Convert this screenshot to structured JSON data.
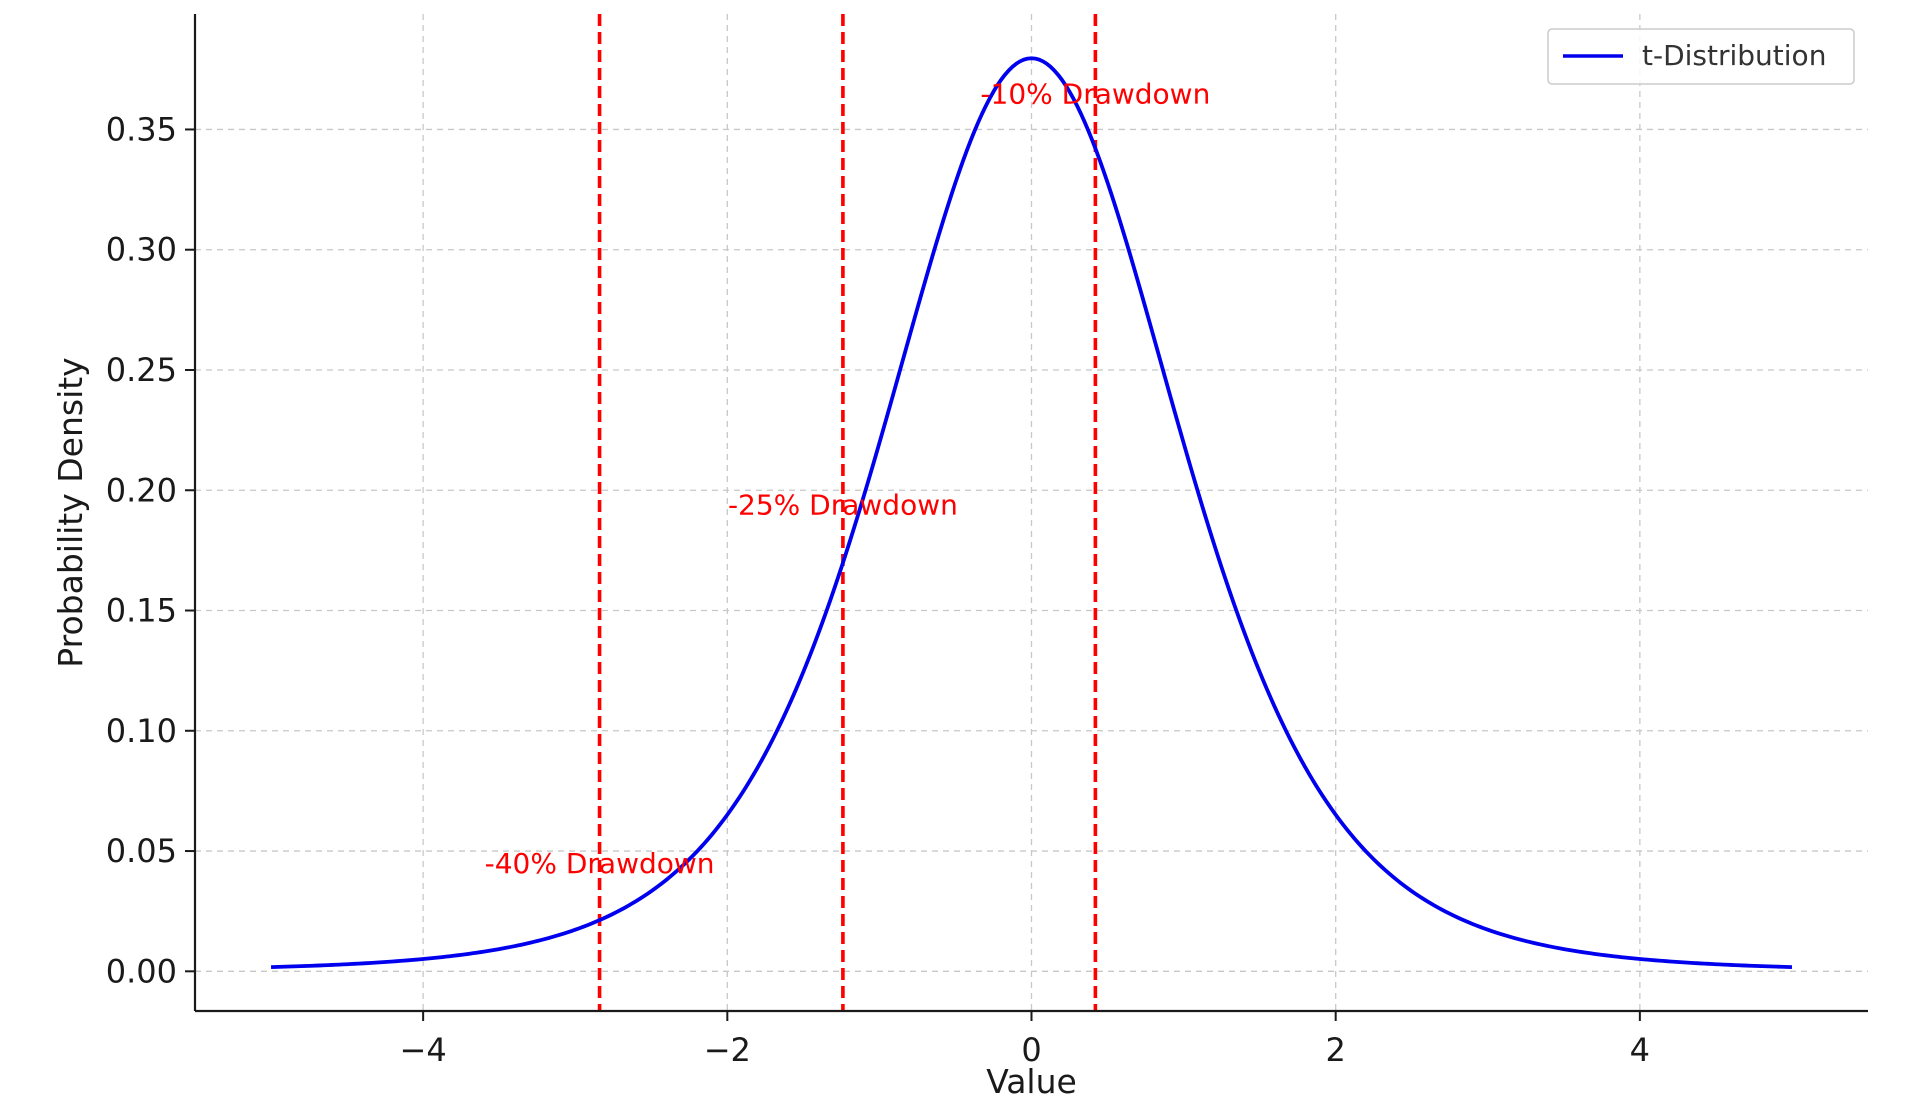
{
  "chart_data": {
    "type": "line",
    "xlabel": "Value",
    "ylabel": "Probability Density",
    "xlim": [
      -5.5,
      5.5
    ],
    "ylim": [
      -0.0165,
      0.398
    ],
    "xticks": [
      -4,
      -2,
      0,
      2,
      4
    ],
    "xtick_labels": [
      "−4",
      "−2",
      "0",
      "2",
      "4"
    ],
    "yticks": [
      0.0,
      0.05,
      0.1,
      0.15,
      0.2,
      0.25,
      0.3,
      0.35
    ],
    "ytick_labels": [
      "0.00",
      "0.05",
      "0.10",
      "0.15",
      "0.20",
      "0.25",
      "0.30",
      "0.35"
    ],
    "grid": true,
    "legend_position": "top-right",
    "series": [
      {
        "name": "t-Distribution",
        "color": "#0000ee",
        "degrees_of_freedom": 5,
        "x": [
          -5.0,
          -4.5,
          -4.0,
          -3.5,
          -3.0,
          -2.75,
          -2.5,
          -2.25,
          -2.0,
          -1.75,
          -1.5,
          -1.25,
          -1.0,
          -0.75,
          -0.5,
          -0.25,
          0.0,
          0.25,
          0.5,
          0.75,
          1.0,
          1.25,
          1.5,
          1.75,
          2.0,
          2.25,
          2.5,
          2.75,
          3.0,
          3.5,
          4.0,
          4.5,
          5.0
        ],
        "y": [
          0.0018,
          0.003,
          0.0051,
          0.009,
          0.0173,
          0.0242,
          0.0329,
          0.0466,
          0.0651,
          0.0885,
          0.1245,
          0.1669,
          0.2197,
          0.2742,
          0.3279,
          0.3641,
          0.3796,
          0.3641,
          0.3279,
          0.2742,
          0.2197,
          0.1669,
          0.1245,
          0.0885,
          0.0651,
          0.0466,
          0.0329,
          0.0242,
          0.0173,
          0.009,
          0.0051,
          0.003,
          0.0018
        ]
      }
    ],
    "vlines": [
      {
        "x": 0.42,
        "label": "-10% Drawdown",
        "label_y": 0.365,
        "color": "#ff0000"
      },
      {
        "x": -1.24,
        "label": "-25% Drawdown",
        "label_y": 0.194,
        "color": "#ff0000"
      },
      {
        "x": -2.84,
        "label": "-40% Drawdown",
        "label_y": 0.045,
        "color": "#ff0000"
      }
    ]
  }
}
